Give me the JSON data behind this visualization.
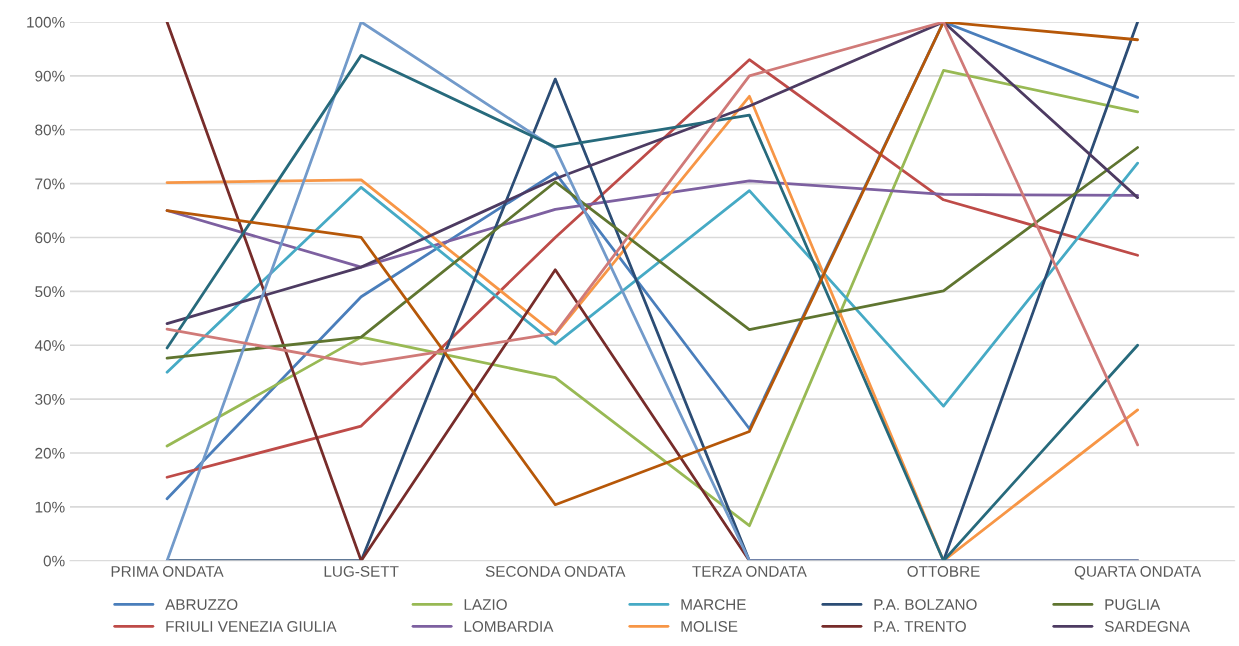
{
  "chart_data": {
    "type": "line",
    "categories": [
      "PRIMA ONDATA",
      "LUG-SETT",
      "SECONDA ONDATA",
      "TERZA ONDATA",
      "OTTOBRE",
      "QUARTA ONDATA"
    ],
    "ylim": [
      0,
      100
    ],
    "yticks": [
      {
        "value": 0,
        "label": "0%"
      },
      {
        "value": 10,
        "label": "10%"
      },
      {
        "value": 20,
        "label": "20%"
      },
      {
        "value": 30,
        "label": "30%"
      },
      {
        "value": 40,
        "label": "40%"
      },
      {
        "value": 50,
        "label": "50%"
      },
      {
        "value": 60,
        "label": "60%"
      },
      {
        "value": 70,
        "label": "70%"
      },
      {
        "value": 80,
        "label": "80%"
      },
      {
        "value": 90,
        "label": "90%"
      },
      {
        "value": 100,
        "label": "100%"
      }
    ],
    "grid": "y",
    "legend": "bottom",
    "marker": "none",
    "line_style": "solid",
    "series": [
      {
        "name": "ABRUZZO",
        "color": "#4a7ebb",
        "values": [
          11.5,
          49,
          72,
          24.5,
          100,
          86
        ]
      },
      {
        "name": "FRIULI VENEZIA GIULIA",
        "color": "#be4b48",
        "values": [
          15.5,
          25,
          60,
          93,
          67,
          56.7
        ]
      },
      {
        "name": "LAZIO",
        "color": "#98b954",
        "values": [
          21.3,
          41.5,
          34,
          6.5,
          91,
          83.3
        ]
      },
      {
        "name": "LOMBARDIA",
        "color": "#7d60a0",
        "values": [
          65,
          54.5,
          65.2,
          70.5,
          68,
          67.8
        ]
      },
      {
        "name": "MARCHE",
        "color": "#46aac5",
        "values": [
          35,
          69.3,
          40.2,
          68.7,
          28.7,
          73.8
        ]
      },
      {
        "name": "MOLISE",
        "color": "#f79646",
        "values": [
          70.2,
          70.7,
          42,
          86.2,
          0,
          28
        ]
      },
      {
        "name": "P.A. BOLZANO",
        "color": "#2c4d75",
        "values": [
          0,
          0,
          89.4,
          0,
          0,
          100
        ]
      },
      {
        "name": "P.A. TRENTO",
        "color": "#772c2a",
        "values": [
          100,
          0,
          54,
          0,
          0,
          0
        ]
      },
      {
        "name": "PUGLIA",
        "color": "#5f7530",
        "values": [
          37.6,
          41.5,
          70.3,
          42.9,
          50.1,
          76.7
        ]
      },
      {
        "name": "SARDEGNA",
        "color": "#4d3b62",
        "values": [
          44,
          54.5,
          70.9,
          84.4,
          100,
          67.4
        ]
      },
      {
        "color": "#729aca",
        "values": [
          0,
          100,
          76.5,
          0,
          0,
          0
        ]
      },
      {
        "color": "#276a7c",
        "values": [
          39.5,
          93.8,
          76.8,
          82.7,
          0,
          40
        ]
      },
      {
        "color": "#b65708",
        "values": [
          65,
          60,
          10.4,
          24,
          100,
          96.7
        ]
      },
      {
        "color": "#d07a78",
        "values": [
          43,
          36.5,
          42.2,
          90,
          100,
          21.5
        ]
      }
    ]
  }
}
